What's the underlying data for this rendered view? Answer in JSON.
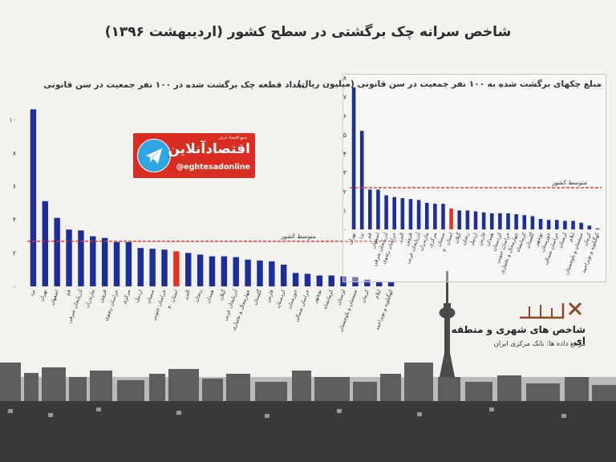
{
  "title": "شاخص سرانه چک برگشتی در سطح کشور (اردیبهشت ۱۳۹۶)",
  "colors": {
    "bar": "#1c2e9b",
    "highlight": "#e53322",
    "average": "#e53322",
    "logo_red": "#d92d22",
    "telegram": "#2ea6df",
    "brand": "#8a4a2a"
  },
  "logo": {
    "handle": "@eghtesadonline",
    "brand": "اقتصادآنلاین",
    "tag": "منبع اقتصاد ایران",
    "icon": "telegram-icon"
  },
  "branding": {
    "title": "شاخص های شهری و منطقه ای",
    "source": "مرجع داده ها: بانک مرکزی ایران"
  },
  "chart_data": [
    {
      "type": "bar",
      "title": "تعداد قطعه چک برگشت شده در ۱۰۰ نفر جمعیت در سن قانونی",
      "ylim": [
        0,
        11
      ],
      "yticks": [
        0,
        2,
        4,
        6,
        8,
        10
      ],
      "average_label": "متوسط کشور",
      "average": 2.7,
      "highlight_category": "۳۰ استان",
      "categories": [
        "یزد",
        "تهران",
        "اصفهان",
        "قم",
        "آذربایجان شرقی",
        "مازندران",
        "قزوین",
        "خراسان رضوی",
        "مرکزی",
        "اردبیل",
        "سمنان",
        "خراسان جنوبی",
        "۳۰ استان",
        "البرز",
        "زنجان",
        "همدان",
        "گیلان",
        "آذربایجان غربی",
        "چهارمحال و بختیاری",
        "گلستان",
        "فارس",
        "کردستان",
        "خوزستان",
        "خراسان شمالی",
        "بوشهر",
        "کرمانشاه",
        "لرستان",
        "سیستان و بلوچستان",
        "کرمان",
        "ایلام",
        "کهگیلویه و بویراحمد"
      ],
      "values": [
        10.6,
        5.1,
        4.1,
        3.4,
        3.35,
        3.0,
        2.9,
        2.65,
        2.65,
        2.3,
        2.25,
        2.2,
        2.1,
        2.0,
        1.9,
        1.8,
        1.8,
        1.75,
        1.6,
        1.55,
        1.5,
        1.3,
        0.8,
        0.75,
        0.65,
        0.65,
        0.6,
        0.55,
        0.4,
        0.3,
        0.25
      ]
    },
    {
      "type": "bar",
      "title": "مبلغ چکهای برگشت شده به ۱۰۰ نفر جمعیت در سن قانونی (میلیون ریال)",
      "ylim": [
        0,
        8
      ],
      "yticks": [
        0,
        1,
        2,
        3,
        4,
        5,
        6,
        7,
        8
      ],
      "average_label": "متوسط کشور",
      "average": 2.2,
      "highlight_category": "۳۰ استان",
      "categories": [
        "تهران",
        "یزد",
        "قم",
        "اصفهان",
        "آذربایجان شرقی",
        "خراسان رضوی",
        "البرز",
        "قزوین",
        "آذربایجان غربی",
        "مازندران",
        "مرکزی",
        "سمنان",
        "۳۰ استان",
        "گیلان",
        "زنجان",
        "اردبیل",
        "فارس",
        "همدان",
        "کردستان",
        "خراسان جنوبی",
        "چهارمحال و بختیاری",
        "کرمانشاه",
        "گلستان",
        "بوشهر",
        "خوزستان",
        "خراسان شمالی",
        "لرستان",
        "ایلام",
        "سیستان و بلوچستان",
        "کرمان",
        "کهگیلویه و بویراحمد"
      ],
      "values": [
        7.5,
        5.2,
        2.1,
        2.1,
        1.8,
        1.7,
        1.65,
        1.6,
        1.55,
        1.4,
        1.35,
        1.35,
        1.1,
        1.0,
        1.0,
        0.95,
        0.9,
        0.85,
        0.85,
        0.85,
        0.8,
        0.75,
        0.7,
        0.55,
        0.5,
        0.5,
        0.45,
        0.45,
        0.35,
        0.2,
        0.05
      ]
    }
  ]
}
